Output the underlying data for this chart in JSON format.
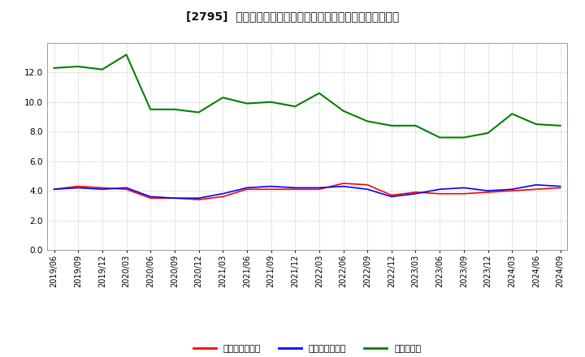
{
  "title": "[2795]  売上債権回転率、買入債務回転率、在庫回転率の推移",
  "x_labels": [
    "2019/06",
    "2019/09",
    "2019/12",
    "2020/03",
    "2020/06",
    "2020/09",
    "2020/12",
    "2021/03",
    "2021/06",
    "2021/09",
    "2021/12",
    "2022/03",
    "2022/06",
    "2022/09",
    "2022/12",
    "2023/03",
    "2023/06",
    "2023/09",
    "2023/12",
    "2024/03",
    "2024/06",
    "2024/09"
  ],
  "receivables": [
    4.1,
    4.3,
    4.2,
    4.1,
    3.5,
    3.5,
    3.4,
    3.6,
    4.1,
    4.1,
    4.1,
    4.1,
    4.5,
    4.4,
    3.7,
    3.9,
    3.8,
    3.8,
    3.9,
    4.0,
    4.1,
    4.2
  ],
  "payables": [
    4.1,
    4.2,
    4.1,
    4.2,
    3.6,
    3.5,
    3.5,
    3.8,
    4.2,
    4.3,
    4.2,
    4.2,
    4.3,
    4.1,
    3.6,
    3.8,
    4.1,
    4.2,
    4.0,
    4.1,
    4.4,
    4.3
  ],
  "inventory": [
    12.3,
    12.4,
    12.2,
    13.2,
    9.5,
    9.5,
    9.3,
    10.3,
    9.9,
    10.0,
    9.7,
    10.6,
    9.4,
    8.7,
    8.4,
    8.4,
    7.6,
    7.6,
    7.9,
    9.2,
    8.5,
    8.4
  ],
  "receivables_color": "#ff0000",
  "payables_color": "#0000ff",
  "inventory_color": "#008000",
  "ylim": [
    0,
    14
  ],
  "yticks": [
    0.0,
    2.0,
    4.0,
    6.0,
    8.0,
    10.0,
    12.0
  ],
  "bg_color": "#ffffff",
  "grid_color": "#bbbbbb",
  "legend_labels": [
    "売上債権回転率",
    "買入債務回転率",
    "在庫回転率"
  ],
  "title_fontsize": 10,
  "tick_fontsize": 7,
  "legend_fontsize": 8
}
